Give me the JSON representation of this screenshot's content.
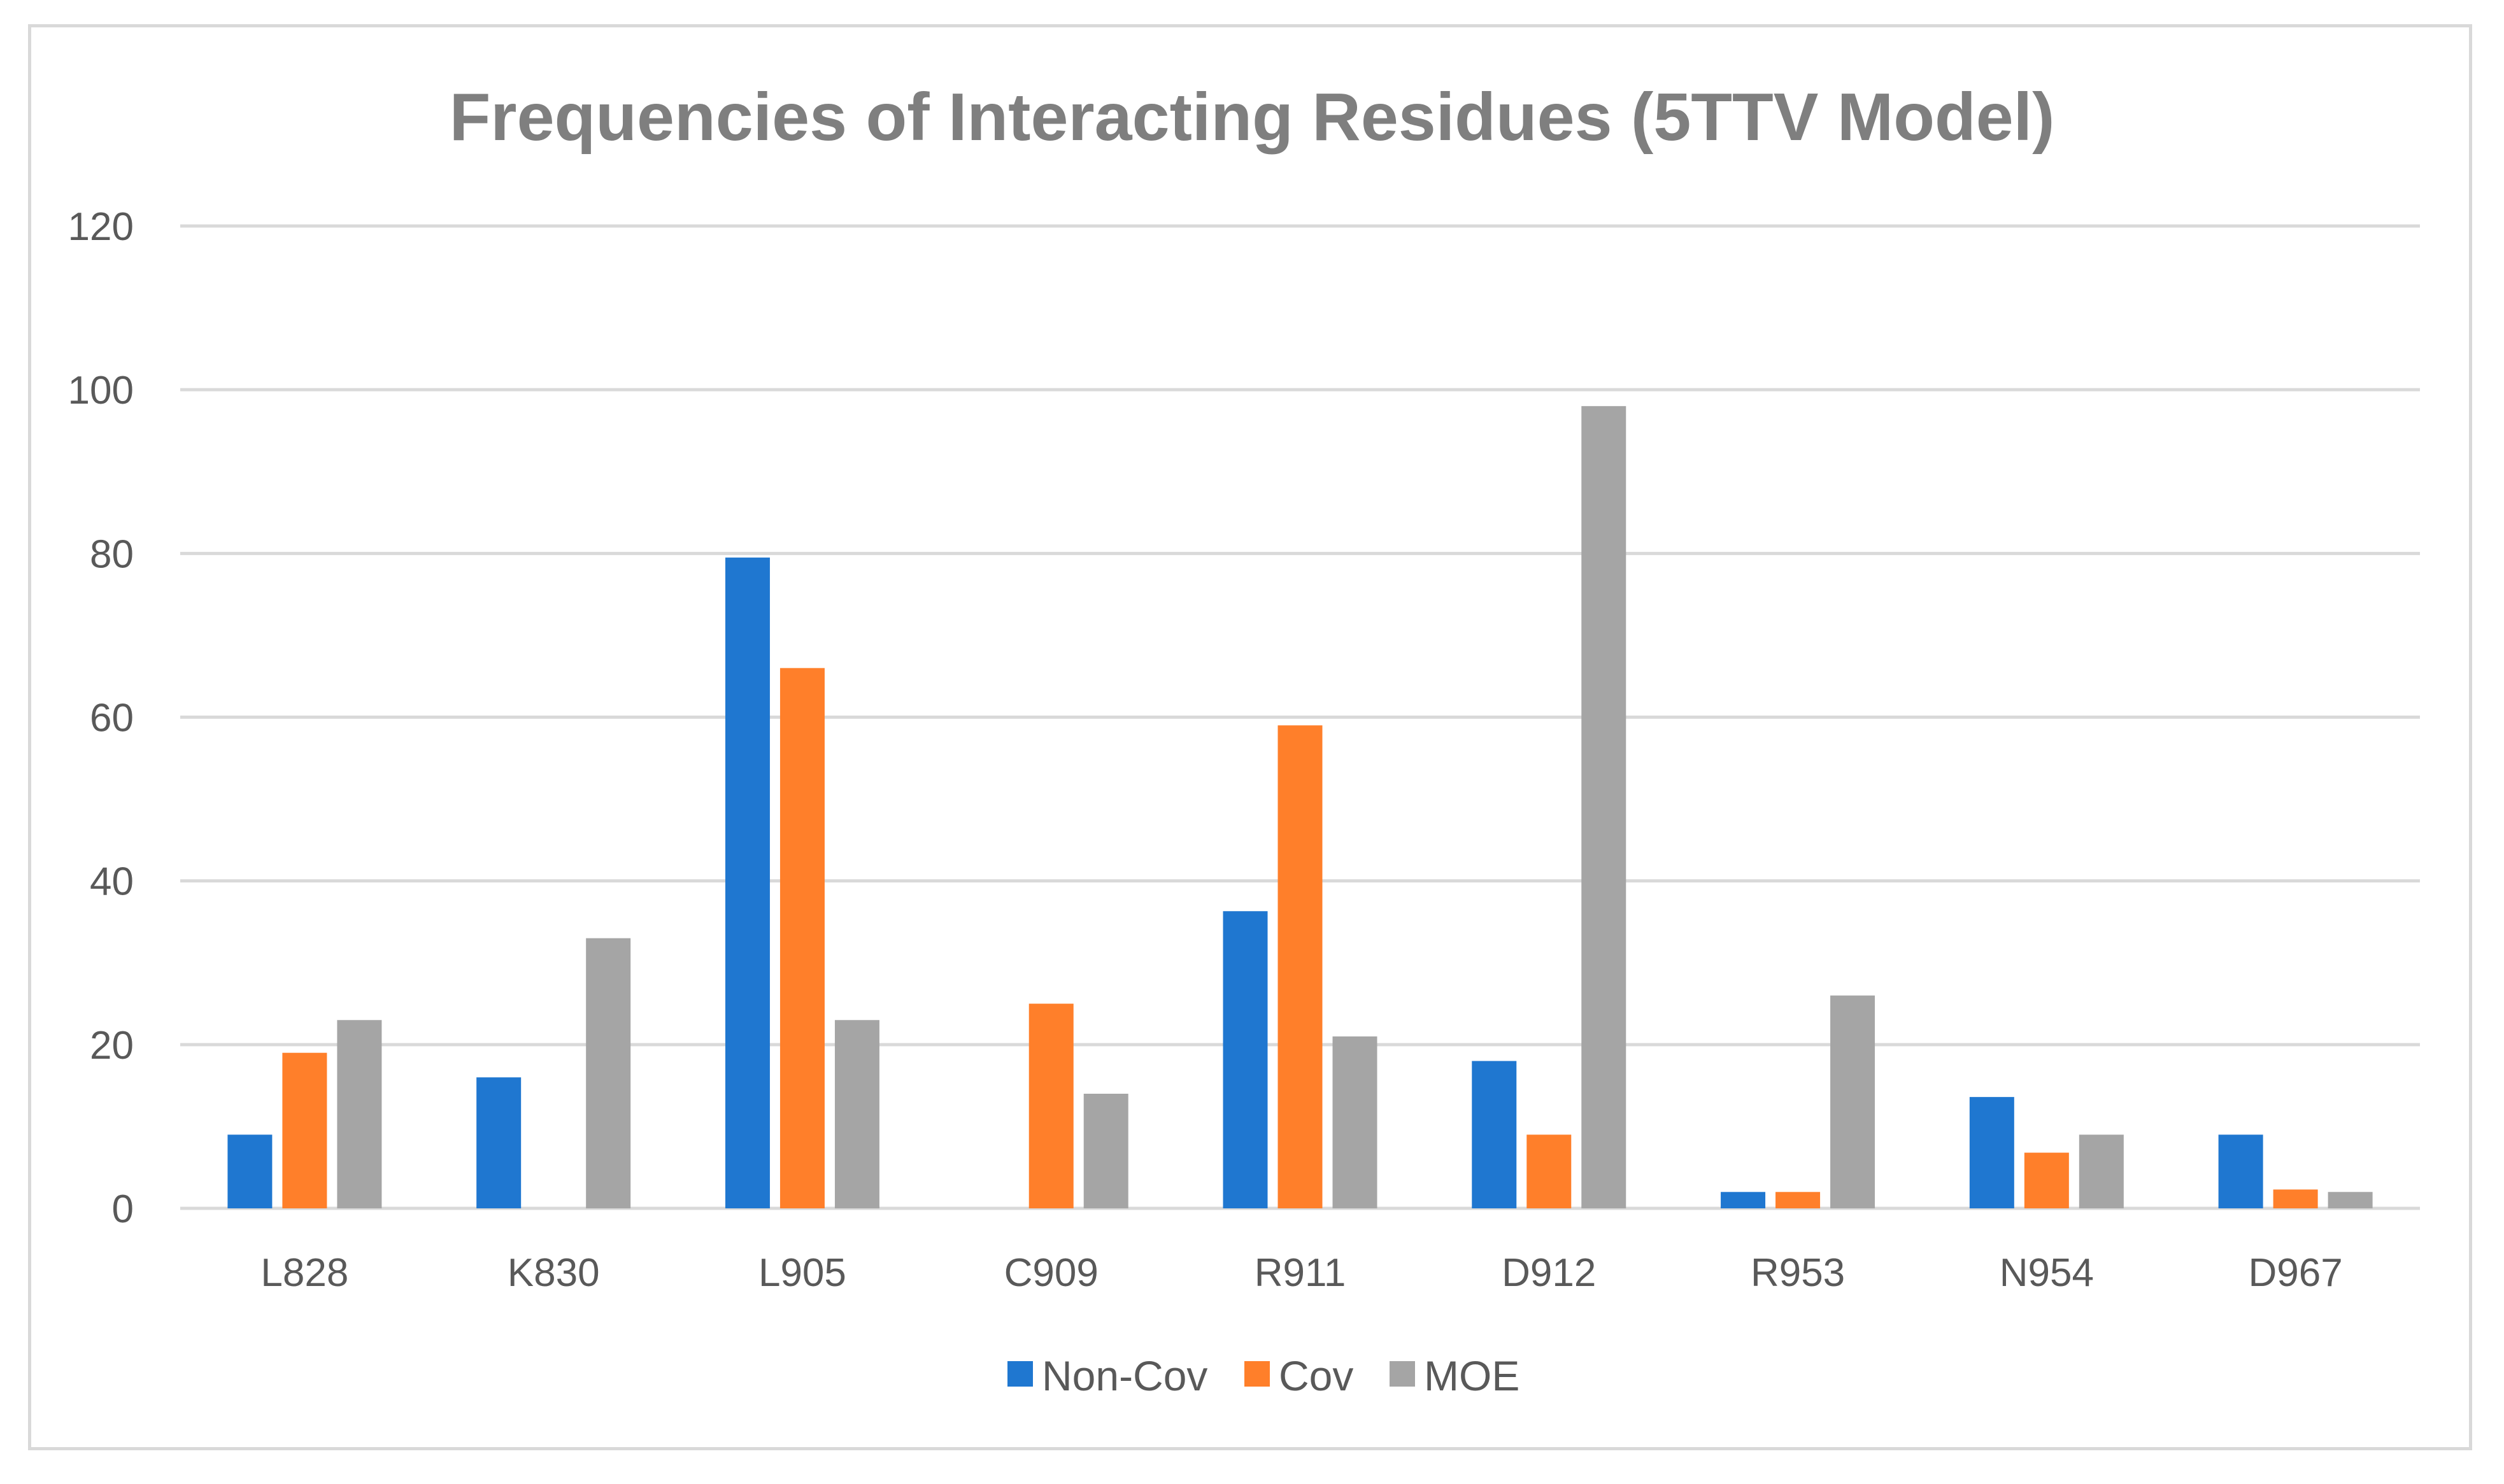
{
  "chart_data": {
    "type": "bar",
    "title": "Frequencies of Interacting Residues (5TTV Model)",
    "xlabel": "",
    "ylabel": "",
    "categories": [
      "L828",
      "K830",
      "L905",
      "C909",
      "R911",
      "D912",
      "R953",
      "N954",
      "D967"
    ],
    "series": [
      {
        "name": "Non-Cov",
        "color": "#1f77d0",
        "values": [
          9,
          16,
          79.5,
          0,
          36.3,
          18,
          2,
          13.6,
          9
        ]
      },
      {
        "name": "Cov",
        "color": "#ff7f2a",
        "values": [
          19,
          0,
          66,
          25,
          59,
          9,
          2,
          6.8,
          2.3
        ]
      },
      {
        "name": "MOE",
        "color": "#a5a5a5",
        "values": [
          23,
          33,
          23,
          14,
          21,
          98,
          26,
          9,
          2
        ]
      }
    ],
    "ylim": [
      0,
      120
    ],
    "yticks": [
      "0",
      "20",
      "40",
      "60",
      "80",
      "100",
      "120"
    ],
    "grid": true,
    "legend_position": "bottom"
  }
}
